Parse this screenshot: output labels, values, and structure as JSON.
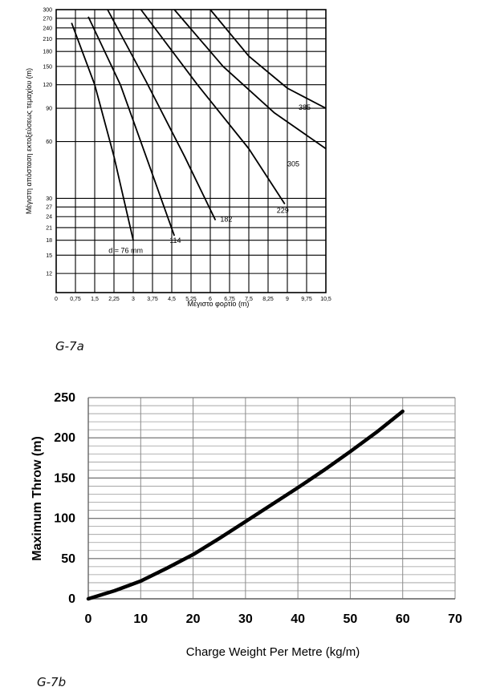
{
  "captions": {
    "a": "G-7a",
    "b": "G-7b"
  },
  "chart_data": [
    {
      "type": "line",
      "xlabel": "Μέγιστο φορτίο  (m)",
      "ylabel": "Μέγιστη απόσταση εκτοξεύσεως τεμαχίου  (m)",
      "x_ticks": [
        "0",
        "0,75",
        "1,5",
        "2,25",
        "3",
        "3,75",
        "4,5",
        "5,25",
        "6",
        "6,75",
        "7,5",
        "8,25",
        "9",
        "9,75",
        "10,5"
      ],
      "y_ticks": [
        "300",
        "270",
        "240",
        "210",
        "180",
        "150",
        "120",
        "90",
        "60",
        "30",
        "27",
        "24",
        "21",
        "18",
        "15",
        "12"
      ],
      "y_scale": "log",
      "series": [
        {
          "name": "d = 76 mm",
          "x": [
            0.6,
            1.5,
            2.25,
            3.0
          ],
          "y": [
            255,
            120,
            50,
            18
          ]
        },
        {
          "name": "114",
          "x": [
            1.25,
            2.5,
            3.5,
            4.6
          ],
          "y": [
            275,
            120,
            50,
            19
          ]
        },
        {
          "name": "182",
          "x": [
            2.0,
            3.5,
            5.0,
            6.2
          ],
          "y": [
            300,
            125,
            50,
            23
          ]
        },
        {
          "name": "229",
          "x": [
            3.3,
            5.5,
            7.5,
            8.9
          ],
          "y": [
            300,
            120,
            55,
            28
          ]
        },
        {
          "name": "305",
          "x": [
            4.6,
            6.5,
            8.5,
            10.5
          ],
          "y": [
            300,
            150,
            85,
            55
          ]
        },
        {
          "name": "385",
          "x": [
            6.0,
            7.5,
            9.0,
            10.5
          ],
          "y": [
            300,
            170,
            115,
            90
          ]
        }
      ]
    },
    {
      "type": "line",
      "xlabel": "Charge Weight Per Metre (kg/m)",
      "ylabel": "Maximum Throw (m)",
      "xlim": [
        0,
        70
      ],
      "ylim": [
        0,
        250
      ],
      "x_ticks": [
        "0",
        "10",
        "20",
        "30",
        "40",
        "50",
        "60",
        "70"
      ],
      "y_ticks": [
        "0",
        "50",
        "100",
        "150",
        "200",
        "250"
      ],
      "grid": true,
      "series": [
        {
          "x": [
            0,
            5,
            10,
            15,
            20,
            25,
            30,
            35,
            40,
            45,
            50,
            55,
            60
          ],
          "y": [
            0,
            10,
            22,
            38,
            55,
            75,
            96,
            117,
            138,
            160,
            183,
            207,
            233
          ]
        }
      ]
    }
  ]
}
